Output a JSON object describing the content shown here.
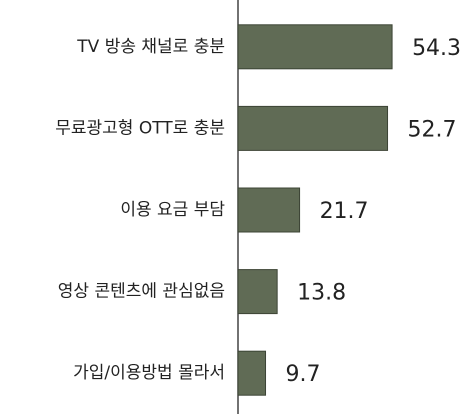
{
  "chart_data": {
    "type": "barh",
    "categories": [
      "TV 방송 채널로 충분",
      "무료광고형 OTT로 충분",
      "이용 요금 부담",
      "영상 콘텐츠에 관심없음",
      "가입/이용방법 몰라서"
    ],
    "values": [
      54.3,
      52.7,
      21.7,
      13.8,
      9.7
    ],
    "color": "#606b55",
    "xlim": [
      0,
      80
    ]
  }
}
